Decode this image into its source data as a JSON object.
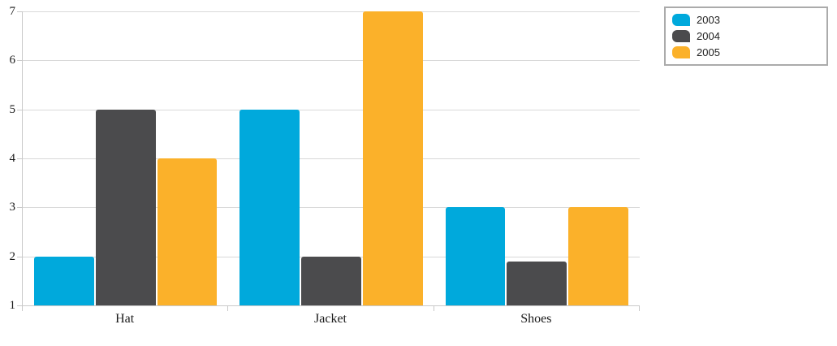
{
  "chart_data": {
    "type": "bar",
    "title": "",
    "xlabel": "",
    "ylabel": "",
    "categories": [
      "Hat",
      "Jacket",
      "Shoes"
    ],
    "series": [
      {
        "name": "2003",
        "color": "#00A9DC",
        "values": [
          2,
          5,
          3
        ]
      },
      {
        "name": "2004",
        "color": "#4B4B4D",
        "values": [
          5,
          2,
          1.9
        ]
      },
      {
        "name": "2005",
        "color": "#FBB12A",
        "values": [
          4,
          7,
          3
        ]
      }
    ],
    "ylim": [
      1,
      7
    ],
    "yticks": [
      1,
      2,
      3,
      4,
      5,
      6,
      7
    ],
    "grid": true,
    "legend_position": "top-right"
  },
  "colors": {
    "background": "#FFFFFF",
    "gridline": "#D9D9D9",
    "axis": "#C9C9C9",
    "axis_label": "#1A1A1A",
    "legend_border": "#ABABAB",
    "legend_text": "#222222"
  }
}
